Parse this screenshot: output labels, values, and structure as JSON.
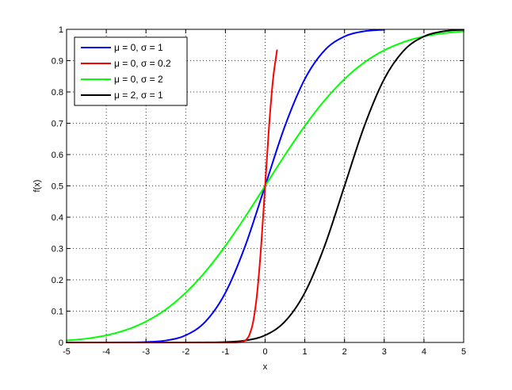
{
  "chart_data": {
    "type": "line",
    "title": "",
    "xlabel": "x",
    "ylabel": "f(x)",
    "xlim": [
      -5,
      5
    ],
    "ylim": [
      0,
      1
    ],
    "xticks": [
      -5,
      -4,
      -3,
      -2,
      -1,
      0,
      1,
      2,
      3,
      4,
      5
    ],
    "yticks": [
      0,
      0.1,
      0.2,
      0.3,
      0.4,
      0.5,
      0.6,
      0.7,
      0.8,
      0.9,
      1
    ],
    "xtick_labels": [
      "-5",
      "-4",
      "-3",
      "-2",
      "-1",
      "0",
      "1",
      "2",
      "3",
      "4",
      "5"
    ],
    "ytick_labels": [
      "0",
      "0.1",
      "0.2",
      "0.3",
      "0.4",
      "0.5",
      "0.6",
      "0.7",
      "0.8",
      "0.9",
      "1"
    ],
    "grid": true,
    "legend_position": "top-left",
    "x": [
      -5,
      -4.5,
      -4,
      -3.5,
      -3,
      -2.5,
      -2,
      -1.5,
      -1,
      -0.5,
      0,
      0.5,
      1,
      1.5,
      2,
      2.5,
      3,
      3.5,
      4,
      4.5,
      5
    ],
    "series": [
      {
        "name": "μ = 0, σ = 1",
        "color": "#0000ff",
        "x": [
          -5,
          -4.5,
          -4,
          -3.5,
          -3,
          -2.5,
          -2,
          -1.5,
          -1,
          -0.5,
          0,
          0.5,
          1,
          1.5,
          2,
          2.5,
          3
        ],
        "values": [
          0.0,
          0.0,
          0.0,
          0.0002,
          0.0013,
          0.0062,
          0.0228,
          0.0668,
          0.1587,
          0.3085,
          0.5,
          0.6915,
          0.8413,
          0.9332,
          0.9772,
          0.9938,
          0.9987
        ]
      },
      {
        "name": "μ = 0, σ = 0.2",
        "color": "#ff0000",
        "x": [
          -5,
          -4,
          -3,
          -2,
          -1,
          -0.8,
          -0.6,
          -0.5,
          -0.4,
          -0.3,
          -0.2,
          -0.1,
          0,
          0.1,
          0.2,
          0.3
        ],
        "values": [
          0.0,
          0.0,
          0.0,
          0.0,
          0.0,
          0.0,
          0.0013,
          0.0062,
          0.0228,
          0.0668,
          0.1587,
          0.3085,
          0.5,
          0.6915,
          0.8413,
          0.9332
        ]
      },
      {
        "name": "μ = 0, σ = 2",
        "color": "#00ff00",
        "x": [
          -5,
          -4.5,
          -4,
          -3.5,
          -3,
          -2.5,
          -2,
          -1.5,
          -1,
          -0.5,
          0,
          0.5,
          1,
          1.5,
          2,
          2.5,
          3,
          3.5,
          4,
          4.5,
          5
        ],
        "values": [
          0.0062,
          0.0122,
          0.0228,
          0.0401,
          0.0668,
          0.1056,
          0.1587,
          0.2266,
          0.3085,
          0.4013,
          0.5,
          0.5987,
          0.6915,
          0.7734,
          0.8413,
          0.8944,
          0.9332,
          0.9599,
          0.9772,
          0.9878,
          0.9938
        ]
      },
      {
        "name": "μ = 2, σ = 1",
        "color": "#000000",
        "x": [
          -5,
          -4.5,
          -4,
          -3.5,
          -3,
          -2.5,
          -2,
          -1.5,
          -1,
          -0.5,
          0,
          0.5,
          1,
          1.5,
          2,
          2.5,
          3,
          3.5,
          4,
          4.5,
          5
        ],
        "values": [
          0.0,
          0.0,
          0.0,
          0.0,
          0.0,
          0.0,
          0.0,
          0.0002,
          0.0013,
          0.0062,
          0.0228,
          0.0668,
          0.1587,
          0.3085,
          0.5,
          0.6915,
          0.8413,
          0.9332,
          0.9772,
          0.9938,
          0.9987
        ]
      }
    ]
  }
}
